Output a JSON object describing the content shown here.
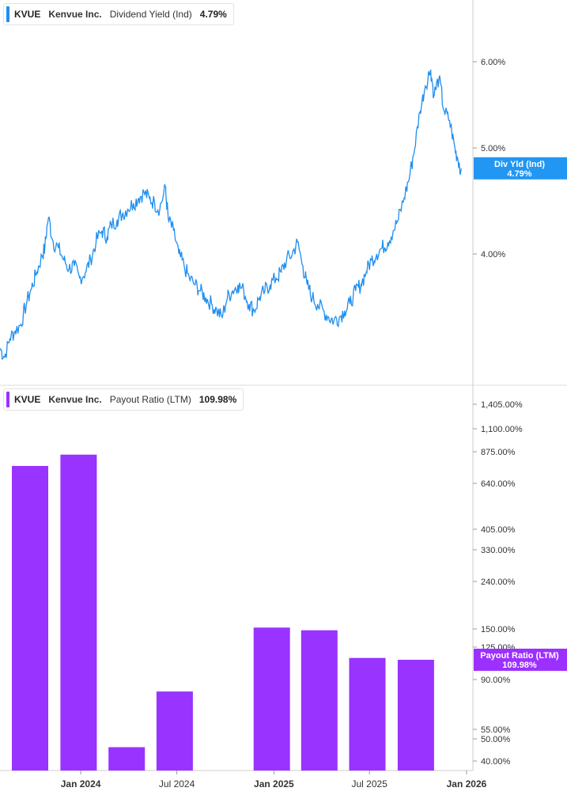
{
  "colors": {
    "yield_line": "#1f8ff0",
    "yield_badge": "#2196f3",
    "payout_bar": "#9933ff",
    "payout_badge": "#9b30ff",
    "axis": "#cccccc",
    "divider": "#dddddd"
  },
  "top_legend": {
    "ticker": "KVUE",
    "company": "Kenvue Inc.",
    "metric": "Dividend Yield (Ind)",
    "value": "4.79%"
  },
  "bottom_legend": {
    "ticker": "KVUE",
    "company": "Kenvue Inc.",
    "metric": "Payout Ratio (LTM)",
    "value": "109.98%"
  },
  "chart_data": [
    {
      "type": "line",
      "series": [
        {
          "name": "Dividend Yield (Ind)",
          "x": [
            "2023-08-01",
            "2023-08-10",
            "2023-08-20",
            "2023-08-30",
            "2023-09-10",
            "2023-09-20",
            "2023-09-30",
            "2023-10-10",
            "2023-10-20",
            "2023-10-25",
            "2023-11-01",
            "2023-11-10",
            "2023-11-20",
            "2023-11-30",
            "2023-12-10",
            "2023-12-20",
            "2023-12-30",
            "2024-01-10",
            "2024-01-20",
            "2024-01-30",
            "2024-02-10",
            "2024-02-20",
            "2024-02-28",
            "2024-03-10",
            "2024-03-20",
            "2024-03-30",
            "2024-04-10",
            "2024-04-20",
            "2024-04-30",
            "2024-05-10",
            "2024-05-20",
            "2024-05-30",
            "2024-06-10",
            "2024-06-15",
            "2024-06-25",
            "2024-07-05",
            "2024-07-15",
            "2024-07-25",
            "2024-08-05",
            "2024-08-15",
            "2024-08-25",
            "2024-09-05",
            "2024-09-15",
            "2024-09-25",
            "2024-10-05",
            "2024-10-15",
            "2024-10-25",
            "2024-11-05",
            "2024-11-15",
            "2024-11-25",
            "2024-12-05",
            "2024-12-15",
            "2024-12-25",
            "2025-01-05",
            "2025-01-15",
            "2025-01-25",
            "2025-02-05",
            "2025-02-15",
            "2025-02-25",
            "2025-03-05",
            "2025-03-15",
            "2025-03-25",
            "2025-04-05",
            "2025-04-15",
            "2025-04-25",
            "2025-05-05",
            "2025-05-15",
            "2025-05-25",
            "2025-06-05",
            "2025-06-15",
            "2025-06-25",
            "2025-07-05",
            "2025-07-15",
            "2025-07-25",
            "2025-08-05",
            "2025-08-15",
            "2025-08-25",
            "2025-09-05",
            "2025-09-15",
            "2025-09-25",
            "2025-10-05",
            "2025-10-15",
            "2025-10-25",
            "2025-11-01",
            "2025-11-10",
            "2025-11-20",
            "2025-11-30",
            "2025-12-10",
            "2025-12-15",
            "2025-12-22"
          ],
          "y": [
            3.28,
            3.22,
            3.35,
            3.4,
            3.45,
            3.6,
            3.72,
            3.85,
            3.98,
            4.05,
            4.32,
            4.1,
            4.05,
            3.95,
            3.88,
            3.9,
            3.8,
            3.85,
            3.95,
            4.1,
            4.2,
            4.15,
            4.25,
            4.3,
            4.35,
            4.4,
            4.45,
            4.5,
            4.55,
            4.5,
            4.45,
            4.4,
            4.6,
            4.3,
            4.2,
            4.0,
            3.9,
            3.8,
            3.75,
            3.7,
            3.65,
            3.6,
            3.55,
            3.5,
            3.65,
            3.7,
            3.75,
            3.7,
            3.6,
            3.55,
            3.65,
            3.7,
            3.75,
            3.8,
            3.85,
            3.95,
            4.0,
            4.1,
            3.9,
            3.75,
            3.65,
            3.6,
            3.55,
            3.5,
            3.48,
            3.5,
            3.55,
            3.6,
            3.7,
            3.75,
            3.85,
            3.95,
            4.0,
            4.05,
            4.1,
            4.2,
            4.3,
            4.5,
            4.7,
            5.0,
            5.4,
            5.7,
            5.9,
            5.6,
            5.8,
            5.4,
            5.3,
            5.0,
            4.9,
            4.79
          ]
        }
      ],
      "xlabel": "",
      "ylabel": "",
      "y_scale": "log",
      "ylim": [
        3.15,
        6.35
      ],
      "y_ticks": [
        "6.00%",
        "5.00%",
        "4.00%"
      ],
      "x_ticks": [
        "Jan 2024",
        "Jul 2024",
        "Jan 2025",
        "Jul 2025",
        "Jan 2026"
      ],
      "last_value_label": {
        "name": "Div Yld (Ind)",
        "value": "4.79%"
      },
      "grid": false
    },
    {
      "type": "bar",
      "series": [
        {
          "name": "Payout Ratio (LTM)",
          "x": [
            "2023-09-30",
            "2023-12-31",
            "2024-03-31",
            "2024-06-30",
            "2024-12-31",
            "2025-03-31",
            "2025-06-30",
            "2025-09-30"
          ],
          "values": [
            760,
            850,
            46,
            80,
            152,
            148,
            112,
            110
          ]
        }
      ],
      "xlabel": "",
      "ylabel": "",
      "y_scale": "log",
      "ylim": [
        38,
        1500
      ],
      "y_ticks": [
        "1,405.00%",
        "1,100.00%",
        "875.00%",
        "640.00%",
        "405.00%",
        "330.00%",
        "240.00%",
        "150.00%",
        "125.00%",
        "90.00%",
        "55.00%",
        "50.00%",
        "40.00%"
      ],
      "x_ticks": [
        "Jan 2024",
        "Jul 2024",
        "Jan 2025",
        "Jul 2025",
        "Jan 2026"
      ],
      "last_value_label": {
        "name": "Payout Ratio (LTM)",
        "value": "109.98%"
      },
      "grid": false
    }
  ]
}
